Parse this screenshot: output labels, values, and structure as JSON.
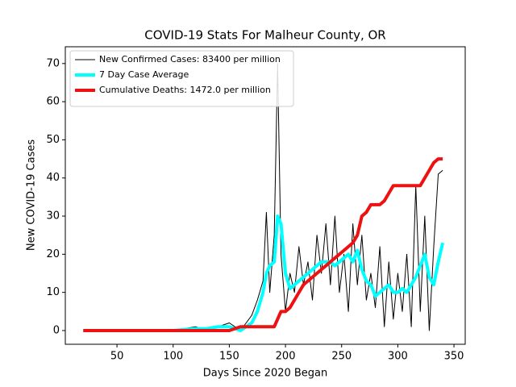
{
  "chart_data": {
    "type": "line",
    "title": "COVID-19 Stats For Malheur County, OR",
    "x_label": "Days Since 2020 Began",
    "y_label": "New COVID-19 Cases",
    "xlim": [
      4,
      360
    ],
    "ylim": [
      -3.6,
      74.4
    ],
    "xticks": [
      50,
      100,
      150,
      200,
      250,
      300,
      350
    ],
    "yticks": [
      0,
      10,
      20,
      30,
      40,
      50,
      60,
      70
    ],
    "legend": "upper left",
    "x": [
      20,
      40,
      60,
      80,
      100,
      120,
      130,
      140,
      150,
      160,
      165,
      170,
      175,
      180,
      183,
      186,
      190,
      193,
      196,
      200,
      204,
      208,
      212,
      216,
      220,
      224,
      228,
      232,
      236,
      240,
      244,
      248,
      252,
      256,
      260,
      264,
      268,
      272,
      276,
      280,
      284,
      288,
      292,
      296,
      300,
      304,
      308,
      312,
      316,
      320,
      324,
      328,
      332,
      336,
      340
    ],
    "series": [
      {
        "name": "New Confirmed Cases: 83400 per million",
        "color": "#000000",
        "width": 1,
        "values": [
          0,
          0,
          0,
          0,
          0,
          1,
          0,
          1,
          2,
          0,
          2,
          4,
          8,
          13,
          31,
          10,
          25,
          70,
          20,
          5,
          15,
          10,
          22,
          12,
          18,
          8,
          25,
          15,
          28,
          12,
          30,
          10,
          20,
          5,
          28,
          12,
          25,
          8,
          15,
          6,
          22,
          1,
          18,
          3,
          15,
          5,
          20,
          1,
          38,
          5,
          30,
          0,
          22,
          41,
          42
        ]
      },
      {
        "name": "7 Day Case Average",
        "color": "#00ffff",
        "width": 4,
        "values": [
          0,
          0,
          0,
          0,
          0,
          0.5,
          0.5,
          1,
          1,
          0,
          1,
          2,
          5,
          10,
          15,
          17,
          18,
          30,
          28,
          15,
          11,
          12,
          13,
          14,
          15,
          16,
          17,
          18,
          18,
          18,
          17,
          18,
          19,
          20,
          18,
          21,
          16,
          13,
          12,
          9,
          10,
          11,
          12,
          10,
          10,
          11,
          10,
          12,
          14,
          17,
          20,
          14,
          12,
          18,
          23
        ]
      },
      {
        "name": "Cumulative Deaths: 1472.0 per million",
        "color": "#ee1111",
        "width": 4,
        "values": [
          0,
          0,
          0,
          0,
          0,
          0,
          0,
          0,
          0,
          1,
          1,
          1,
          1,
          1,
          1,
          1,
          1,
          3,
          5,
          5,
          6,
          8,
          10,
          12,
          13,
          14,
          15,
          16,
          17,
          18,
          19,
          20,
          21,
          22,
          23,
          25,
          30,
          31,
          33,
          33,
          33,
          34,
          36,
          38,
          38,
          38,
          38,
          38,
          38,
          38,
          40,
          42,
          44,
          45,
          45
        ]
      }
    ]
  }
}
